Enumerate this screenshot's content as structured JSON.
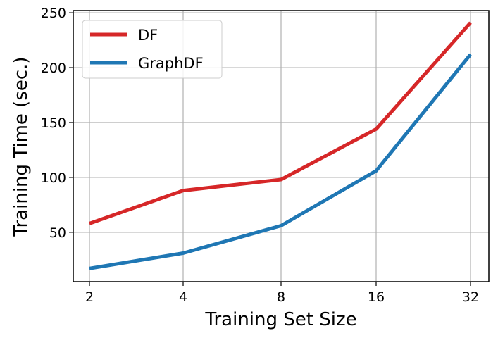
{
  "chart_data": {
    "type": "line",
    "x": [
      "2",
      "4",
      "8",
      "16",
      "32"
    ],
    "xlabel": "Training Set Size",
    "ylabel": "Training Time (sec.)",
    "yticks": [
      50,
      100,
      150,
      200,
      250
    ],
    "ylim": [
      5,
      252
    ],
    "grid": true,
    "legend_position": "top-left",
    "series": [
      {
        "name": "DF",
        "color": "#d62728",
        "values": [
          58,
          88,
          98,
          144,
          241
        ]
      },
      {
        "name": "GraphDF",
        "color": "#1f77b4",
        "values": [
          17,
          31,
          56,
          106,
          212
        ]
      }
    ]
  }
}
